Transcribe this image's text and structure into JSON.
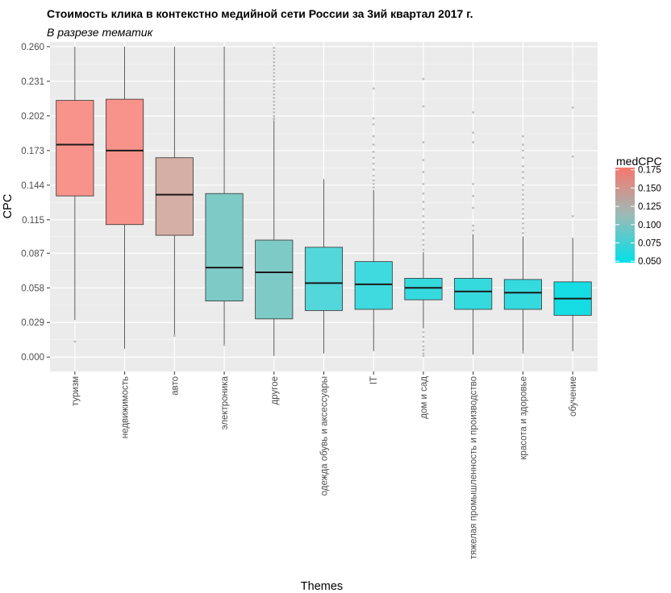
{
  "chart_data": {
    "type": "boxplot",
    "title": "Стоимость клика в контекстно медийной сети России за 3ий квартал 2017 г.",
    "subtitle": "В разрезе тематик",
    "xlabel": "Themes",
    "ylabel": "CPC",
    "ylim": [
      -0.012,
      0.264
    ],
    "yticks": [
      "0.000",
      "0.029",
      "0.058",
      "0.087",
      "0.115",
      "0.144",
      "0.173",
      "0.202",
      "0.231",
      "0.260"
    ],
    "yticks_values": [
      0,
      0.029,
      0.058,
      0.087,
      0.115,
      0.144,
      0.173,
      0.202,
      0.231,
      0.26
    ],
    "grid": true,
    "legend": {
      "title": "medCPC",
      "position": "right",
      "labels": [
        "0.175",
        "0.150",
        "0.125",
        "0.100",
        "0.075",
        "0.050"
      ],
      "label_values": [
        0.175,
        0.15,
        0.125,
        0.1,
        0.075,
        0.05
      ],
      "range": [
        0.048,
        0.178
      ],
      "colors": [
        "#00e0e9",
        "#f8766d"
      ]
    },
    "categories": [
      "туризм",
      "недвижимость",
      "авто",
      "электроника",
      "другое",
      "одежда обувь и аксессуары",
      "IT",
      "дом и сад",
      "тяжелая промышленность и производство",
      "красота и здоровье",
      "обучение"
    ],
    "boxes": [
      {
        "theme": "туризм",
        "min": 0.031,
        "q1": 0.135,
        "median": 0.178,
        "q3": 0.215,
        "max": 0.26,
        "fill": "#f8938b",
        "outliers": [
          0.013
        ]
      },
      {
        "theme": "недвижимость",
        "min": 0.007,
        "q1": 0.111,
        "median": 0.173,
        "q3": 0.216,
        "max": 0.26,
        "fill": "#f8938b",
        "outliers": []
      },
      {
        "theme": "авто",
        "min": 0.018,
        "q1": 0.102,
        "median": 0.136,
        "q3": 0.167,
        "max": 0.26,
        "fill": "#d5aea5",
        "outliers": [
          0.0178
        ]
      },
      {
        "theme": "электроника",
        "min": 0.01,
        "q1": 0.047,
        "median": 0.075,
        "q3": 0.137,
        "max": 0.26,
        "fill": "#7ecac6",
        "outliers": [
          0.01
        ]
      },
      {
        "theme": "другое",
        "min": 0.001,
        "q1": 0.032,
        "median": 0.071,
        "q3": 0.098,
        "max": 0.198,
        "fill": "#7ecac6",
        "outliers": [
          0.199,
          0.2,
          0.202,
          0.205,
          0.208,
          0.211,
          0.214,
          0.217,
          0.22,
          0.223,
          0.226,
          0.229,
          0.232,
          0.235,
          0.238,
          0.241,
          0.244,
          0.247,
          0.25,
          0.253,
          0.256,
          0.259
        ]
      },
      {
        "theme": "одежда обувь и аксессуары",
        "min": 0.003,
        "q1": 0.039,
        "median": 0.062,
        "q3": 0.092,
        "max": 0.149,
        "fill": "#54d7da",
        "outliers": []
      },
      {
        "theme": "IT",
        "min": 0.005,
        "q1": 0.04,
        "median": 0.061,
        "q3": 0.08,
        "max": 0.14,
        "fill": "#3fdadf",
        "outliers": [
          0.142,
          0.145,
          0.148,
          0.152,
          0.157,
          0.162,
          0.167,
          0.172,
          0.178,
          0.185,
          0.195,
          0.2,
          0.225
        ]
      },
      {
        "theme": "дом и сад",
        "min": 0.024,
        "q1": 0.048,
        "median": 0.058,
        "q3": 0.066,
        "max": 0.088,
        "fill": "#35dadf",
        "outliers": [
          0.001,
          0.003,
          0.006,
          0.009,
          0.013,
          0.017,
          0.021,
          0.09,
          0.094,
          0.098,
          0.103,
          0.108,
          0.113,
          0.118,
          0.124,
          0.13,
          0.137,
          0.145,
          0.155,
          0.165,
          0.18,
          0.21,
          0.233
        ]
      },
      {
        "theme": "тяжелая промышленность и производство",
        "min": 0.002,
        "q1": 0.04,
        "median": 0.055,
        "q3": 0.066,
        "max": 0.103,
        "fill": "#35dadf",
        "outliers": [
          0.106,
          0.11,
          0.125,
          0.135,
          0.145,
          0.18,
          0.188,
          0.205
        ]
      },
      {
        "theme": "красота и здоровье",
        "min": 0.003,
        "q1": 0.04,
        "median": 0.054,
        "q3": 0.065,
        "max": 0.101,
        "fill": "#35dadf",
        "outliers": [
          0.004,
          0.104,
          0.108,
          0.112,
          0.116,
          0.12,
          0.124,
          0.128,
          0.132,
          0.136,
          0.14,
          0.144,
          0.15,
          0.155,
          0.16,
          0.167,
          0.173,
          0.178,
          0.185
        ]
      },
      {
        "theme": "обучение",
        "min": 0.005,
        "q1": 0.035,
        "median": 0.049,
        "q3": 0.063,
        "max": 0.1,
        "fill": "#15dde3",
        "outliers": [
          0.118,
          0.168,
          0.209
        ]
      }
    ]
  }
}
